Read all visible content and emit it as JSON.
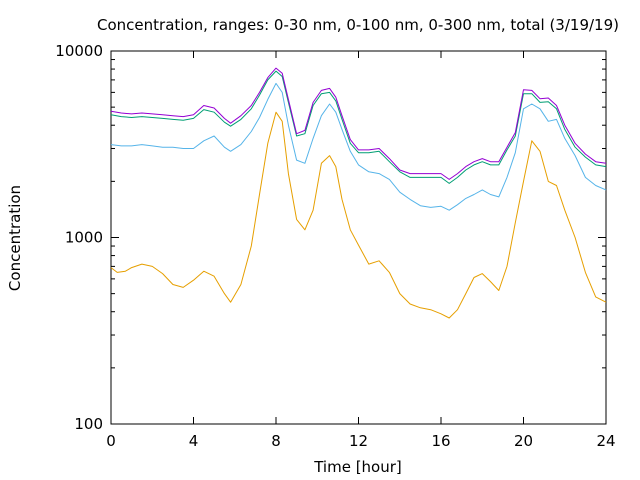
{
  "chart_data": {
    "type": "line",
    "title": "Concentration, ranges: 0-30 nm, 0-100 nm, 0-300 nm, total (3/19/19)",
    "xlabel": "Time [hour]",
    "ylabel": "Concentration",
    "xlim": [
      0,
      24
    ],
    "ylim": [
      100,
      10000
    ],
    "yscale": "log",
    "grid": false,
    "legend": "none",
    "xticks": [
      0,
      4,
      8,
      12,
      16,
      20,
      24
    ],
    "xtick_labels": [
      "0",
      "4",
      "8",
      "12",
      "16",
      "20",
      "24"
    ],
    "yticks": [
      100,
      1000,
      10000
    ],
    "ytick_labels": [
      "100",
      "1000",
      "10000"
    ],
    "series": [
      {
        "color": "#e69f00",
        "x": [
          0,
          0.3,
          0.7,
          1.0,
          1.5,
          2.0,
          2.5,
          3.0,
          3.5,
          4.0,
          4.5,
          5.0,
          5.5,
          5.8,
          6.3,
          6.8,
          7.2,
          7.6,
          8.0,
          8.3,
          8.6,
          9.0,
          9.4,
          9.8,
          10.2,
          10.6,
          10.9,
          11.2,
          11.6,
          12.0,
          12.5,
          13.0,
          13.5,
          14.0,
          14.5,
          15.0,
          15.5,
          16.0,
          16.4,
          16.8,
          17.2,
          17.6,
          18.0,
          18.4,
          18.8,
          19.2,
          19.6,
          20.0,
          20.4,
          20.8,
          21.2,
          21.6,
          22.0,
          22.5,
          23.0,
          23.5,
          24.0
        ],
        "values": [
          690,
          650,
          660,
          690,
          720,
          700,
          640,
          560,
          540,
          590,
          660,
          620,
          500,
          450,
          560,
          900,
          1700,
          3200,
          4700,
          4200,
          2200,
          1250,
          1100,
          1400,
          2500,
          2750,
          2400,
          1600,
          1100,
          910,
          720,
          750,
          650,
          500,
          440,
          420,
          410,
          390,
          370,
          410,
          500,
          610,
          640,
          580,
          520,
          700,
          1200,
          2000,
          3300,
          2900,
          2000,
          1900,
          1400,
          1000,
          650,
          480,
          450
        ]
      },
      {
        "color": "#56b4e9",
        "x": [
          0,
          0.5,
          1.0,
          1.5,
          2.0,
          2.5,
          3.0,
          3.5,
          4.0,
          4.5,
          5.0,
          5.5,
          5.8,
          6.3,
          6.8,
          7.2,
          7.6,
          8.0,
          8.3,
          8.6,
          9.0,
          9.4,
          9.8,
          10.2,
          10.6,
          10.9,
          11.2,
          11.6,
          12.0,
          12.5,
          13.0,
          13.5,
          14.0,
          14.5,
          15.0,
          15.5,
          16.0,
          16.4,
          16.8,
          17.2,
          17.6,
          18.0,
          18.4,
          18.8,
          19.2,
          19.6,
          20.0,
          20.4,
          20.8,
          21.2,
          21.6,
          22.0,
          22.5,
          23.0,
          23.5,
          24.0
        ],
        "values": [
          3150,
          3100,
          3100,
          3150,
          3100,
          3050,
          3050,
          3000,
          3000,
          3300,
          3500,
          3050,
          2900,
          3150,
          3700,
          4400,
          5500,
          6700,
          6000,
          4000,
          2600,
          2500,
          3400,
          4500,
          5200,
          4700,
          3800,
          2900,
          2450,
          2250,
          2200,
          2050,
          1750,
          1600,
          1480,
          1450,
          1470,
          1400,
          1500,
          1620,
          1700,
          1800,
          1700,
          1650,
          2100,
          2850,
          4900,
          5200,
          4900,
          4200,
          4300,
          3400,
          2750,
          2100,
          1900,
          1800
        ]
      },
      {
        "color": "#009e73",
        "x": [
          0,
          0.5,
          1.0,
          1.5,
          2.0,
          2.5,
          3.0,
          3.5,
          4.0,
          4.5,
          5.0,
          5.5,
          5.8,
          6.3,
          6.8,
          7.2,
          7.6,
          8.0,
          8.3,
          8.6,
          9.0,
          9.4,
          9.8,
          10.2,
          10.6,
          10.9,
          11.2,
          11.6,
          12.0,
          12.5,
          13.0,
          13.5,
          14.0,
          14.5,
          15.0,
          15.5,
          16.0,
          16.4,
          16.8,
          17.2,
          17.6,
          18.0,
          18.4,
          18.8,
          19.2,
          19.6,
          20.0,
          20.4,
          20.8,
          21.2,
          21.6,
          22.0,
          22.5,
          23.0,
          23.5,
          24.0
        ],
        "values": [
          4550,
          4450,
          4400,
          4450,
          4400,
          4350,
          4300,
          4250,
          4350,
          4850,
          4700,
          4150,
          3950,
          4300,
          4900,
          5800,
          7000,
          7800,
          7300,
          5300,
          3500,
          3600,
          5100,
          5900,
          6000,
          5400,
          4300,
          3200,
          2850,
          2850,
          2900,
          2550,
          2250,
          2100,
          2100,
          2100,
          2100,
          1950,
          2100,
          2300,
          2450,
          2550,
          2450,
          2450,
          2950,
          3500,
          5900,
          5900,
          5300,
          5350,
          4900,
          3800,
          3050,
          2700,
          2450,
          2400
        ]
      },
      {
        "color": "#9400d3",
        "x": [
          0,
          0.5,
          1.0,
          1.5,
          2.0,
          2.5,
          3.0,
          3.5,
          4.0,
          4.5,
          5.0,
          5.5,
          5.8,
          6.3,
          6.8,
          7.2,
          7.6,
          8.0,
          8.3,
          8.6,
          9.0,
          9.4,
          9.8,
          10.2,
          10.6,
          10.9,
          11.2,
          11.6,
          12.0,
          12.5,
          13.0,
          13.5,
          14.0,
          14.5,
          15.0,
          15.5,
          16.0,
          16.4,
          16.8,
          17.2,
          17.6,
          18.0,
          18.4,
          18.8,
          19.2,
          19.6,
          20.0,
          20.4,
          20.8,
          21.2,
          21.6,
          22.0,
          22.5,
          23.0,
          23.5,
          24.0
        ],
        "values": [
          4750,
          4650,
          4600,
          4650,
          4600,
          4550,
          4500,
          4450,
          4550,
          5100,
          4950,
          4350,
          4100,
          4500,
          5100,
          6000,
          7200,
          8100,
          7600,
          5500,
          3600,
          3750,
          5300,
          6150,
          6300,
          5650,
          4500,
          3350,
          2950,
          2950,
          3000,
          2650,
          2300,
          2200,
          2200,
          2200,
          2200,
          2050,
          2200,
          2400,
          2550,
          2650,
          2550,
          2550,
          3050,
          3650,
          6200,
          6150,
          5550,
          5600,
          5100,
          4000,
          3200,
          2800,
          2550,
          2500
        ]
      }
    ]
  }
}
